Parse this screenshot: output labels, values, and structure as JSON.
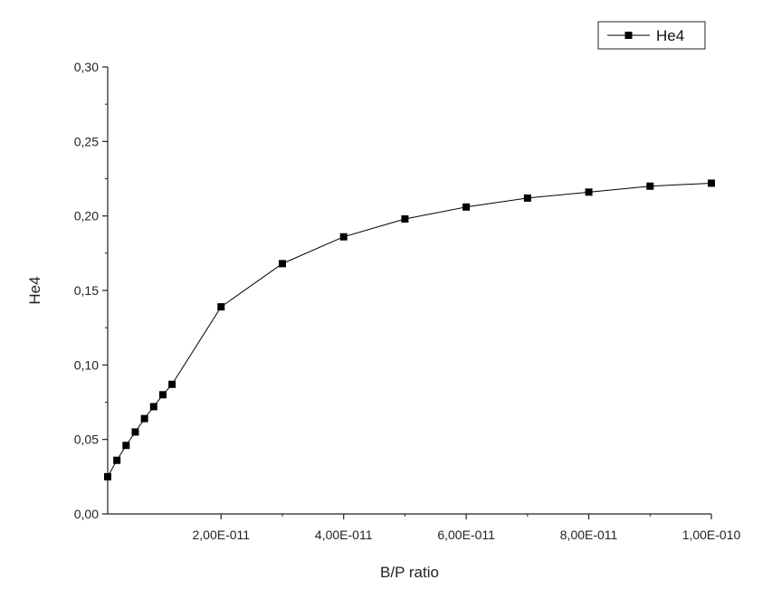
{
  "chart_data": {
    "type": "line",
    "title": "",
    "xlabel": "B/P ratio",
    "ylabel": "He4",
    "xlim": [
      1.5e-12,
      1e-10
    ],
    "ylim": [
      0.0,
      0.3
    ],
    "x_ticks": [
      2e-11,
      4e-11,
      6e-11,
      8e-11,
      1e-10
    ],
    "x_tick_labels": [
      "2,00E-011",
      "4,00E-011",
      "6,00E-011",
      "8,00E-011",
      "1,00E-010"
    ],
    "y_ticks": [
      0.0,
      0.05,
      0.1,
      0.15,
      0.2,
      0.25,
      0.3
    ],
    "y_tick_labels": [
      "0,00",
      "0,05",
      "0,10",
      "0,15",
      "0,20",
      "0,25",
      "0,30"
    ],
    "grid": false,
    "legend": {
      "position": "top-right",
      "entries": [
        "He4"
      ]
    },
    "series": [
      {
        "name": "He4",
        "color": "#000000",
        "marker": "square",
        "x": [
          1.5e-12,
          3e-12,
          4.5e-12,
          6e-12,
          7.5e-12,
          9e-12,
          1.05e-11,
          1.2e-11,
          2e-11,
          3e-11,
          4e-11,
          5e-11,
          6e-11,
          7e-11,
          8e-11,
          9e-11,
          1e-10
        ],
        "y": [
          0.025,
          0.036,
          0.046,
          0.055,
          0.064,
          0.072,
          0.08,
          0.087,
          0.139,
          0.168,
          0.186,
          0.198,
          0.206,
          0.212,
          0.216,
          0.22,
          0.222
        ]
      }
    ]
  }
}
